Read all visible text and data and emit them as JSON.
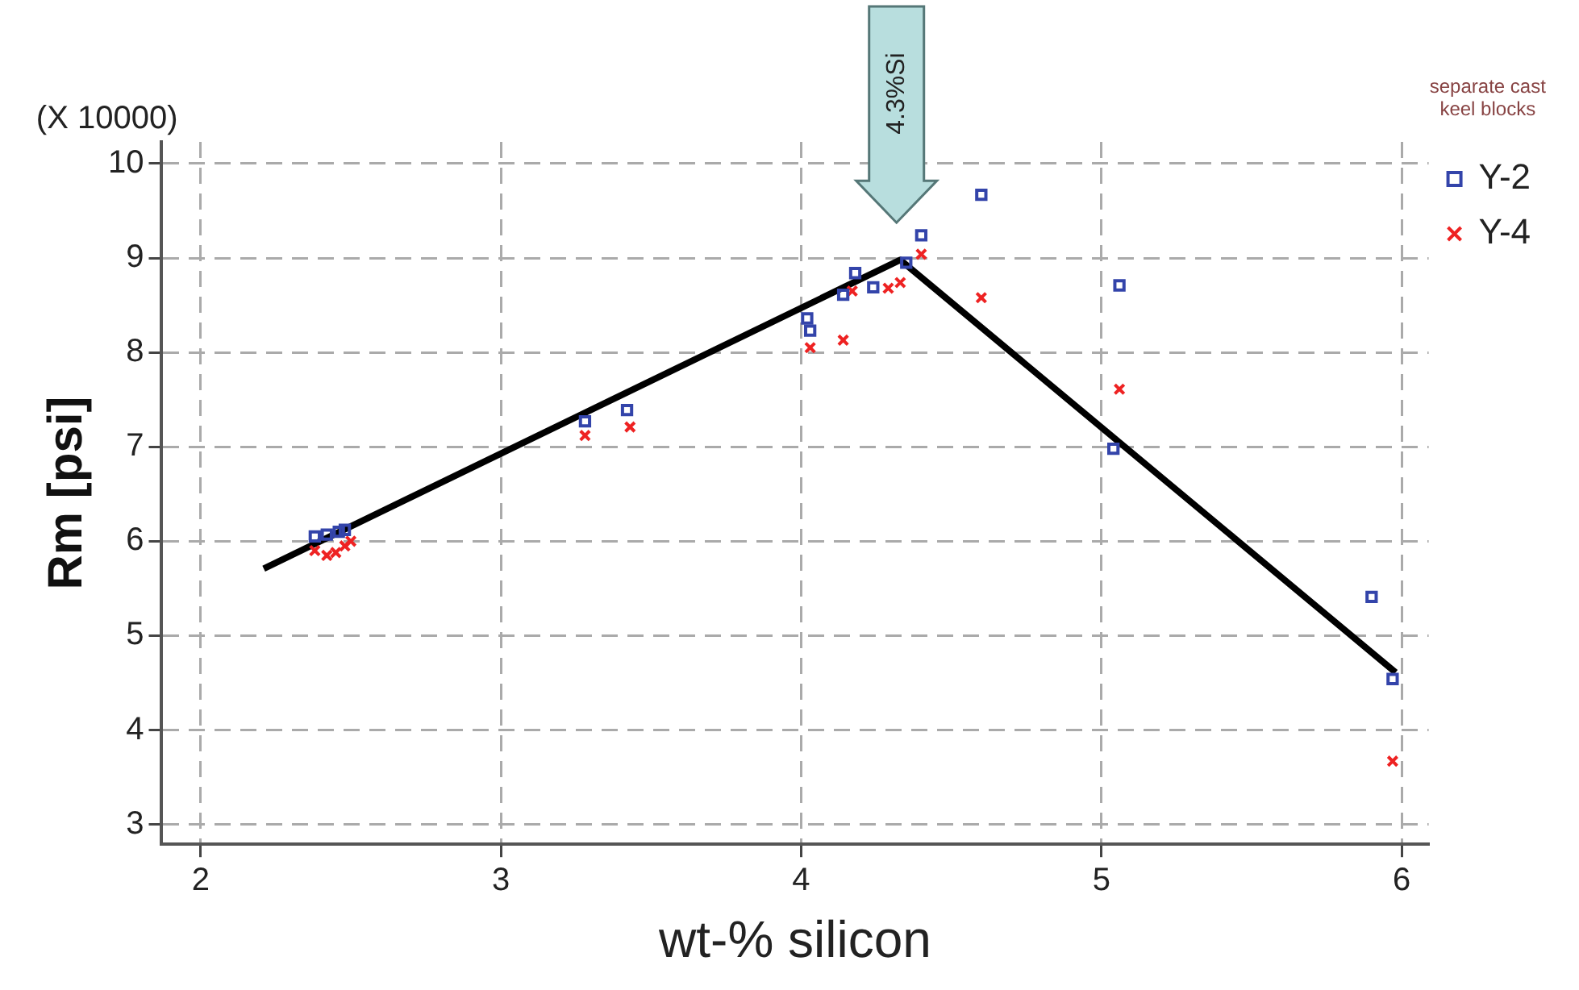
{
  "chart_data": {
    "type": "scatter",
    "xlabel": "wt-% silicon",
    "ylabel": "Rm [psi]",
    "legend_title": "separate cast keel blocks",
    "xlim": [
      1.87,
      6.09
    ],
    "xticks": [
      2,
      3,
      4,
      5,
      6
    ],
    "ylim": [
      2.79,
      10.23
    ],
    "yticks": [
      3,
      4,
      5,
      6,
      7,
      8,
      9,
      10
    ],
    "grid": true,
    "legend": "right",
    "annotations": [
      "(X 10000)",
      "4.3%Si"
    ],
    "series": [
      {
        "name": "Y-2",
        "color": "#3344aa",
        "marker": "square",
        "x": [
          2.38,
          2.42,
          2.46,
          2.48,
          3.28,
          3.42,
          4.02,
          4.03,
          4.14,
          4.18,
          4.24,
          4.35,
          4.4,
          4.6,
          5.04,
          5.06,
          5.9,
          5.97
        ],
        "values": [
          6.05,
          6.07,
          6.1,
          6.12,
          7.27,
          7.39,
          8.36,
          8.23,
          8.61,
          8.84,
          8.69,
          8.95,
          9.24,
          9.67,
          6.98,
          8.71,
          5.41,
          4.54
        ]
      },
      {
        "name": "Y-4",
        "color": "#ee2222",
        "marker": "cross",
        "x": [
          2.38,
          2.42,
          2.45,
          2.48,
          2.5,
          3.28,
          3.43,
          4.03,
          4.14,
          4.17,
          4.29,
          4.33,
          4.4,
          4.6,
          5.06,
          5.97
        ],
        "values": [
          5.9,
          5.85,
          5.88,
          5.95,
          6.0,
          7.12,
          7.21,
          8.05,
          8.13,
          8.65,
          8.68,
          8.74,
          9.04,
          8.58,
          7.61,
          3.67
        ]
      },
      {
        "type": "line",
        "color": "#000000",
        "marker": "none",
        "line_style": "solid",
        "x": [
          2.21,
          4.33,
          5.98
        ],
        "values": [
          5.71,
          8.98,
          4.61
        ]
      }
    ]
  }
}
